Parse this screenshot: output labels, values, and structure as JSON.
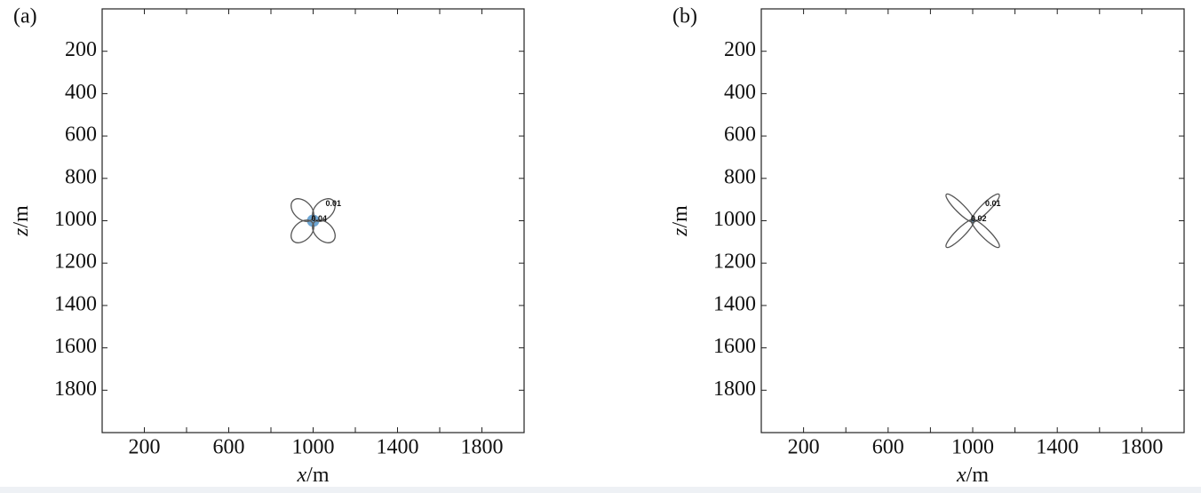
{
  "chart_data": [
    {
      "type": "contour",
      "panel_label": "(a)",
      "xlabel": "x/m",
      "ylabel": "z/m",
      "xlim": [
        0,
        2000
      ],
      "ylim": [
        0,
        2000
      ],
      "y_inverted": true,
      "xticks": [
        200,
        600,
        1000,
        1400,
        1800
      ],
      "xminor_ticks": [
        400,
        800,
        1200,
        1600
      ],
      "yticks": [
        200,
        400,
        600,
        800,
        1000,
        1200,
        1400,
        1600,
        1800
      ],
      "source": {
        "x": 1000,
        "z": 1000
      },
      "contour_levels": [
        0.01,
        0.04
      ],
      "line_color": "#555",
      "fill_color": "#4a90c8"
    },
    {
      "type": "contour",
      "panel_label": "(b)",
      "xlabel": "x/m",
      "ylabel": "z/m",
      "xlim": [
        0,
        2000
      ],
      "ylim": [
        0,
        2000
      ],
      "y_inverted": true,
      "xticks": [
        200,
        600,
        1000,
        1400,
        1800
      ],
      "xminor_ticks": [
        400,
        800,
        1200,
        1600
      ],
      "yticks": [
        200,
        400,
        600,
        800,
        1000,
        1200,
        1400,
        1600,
        1800
      ],
      "source": {
        "x": 1000,
        "z": 1000
      },
      "contour_levels": [
        0.01,
        0.02
      ],
      "line_color": "#555",
      "fill_color": "#4a90c8"
    }
  ]
}
